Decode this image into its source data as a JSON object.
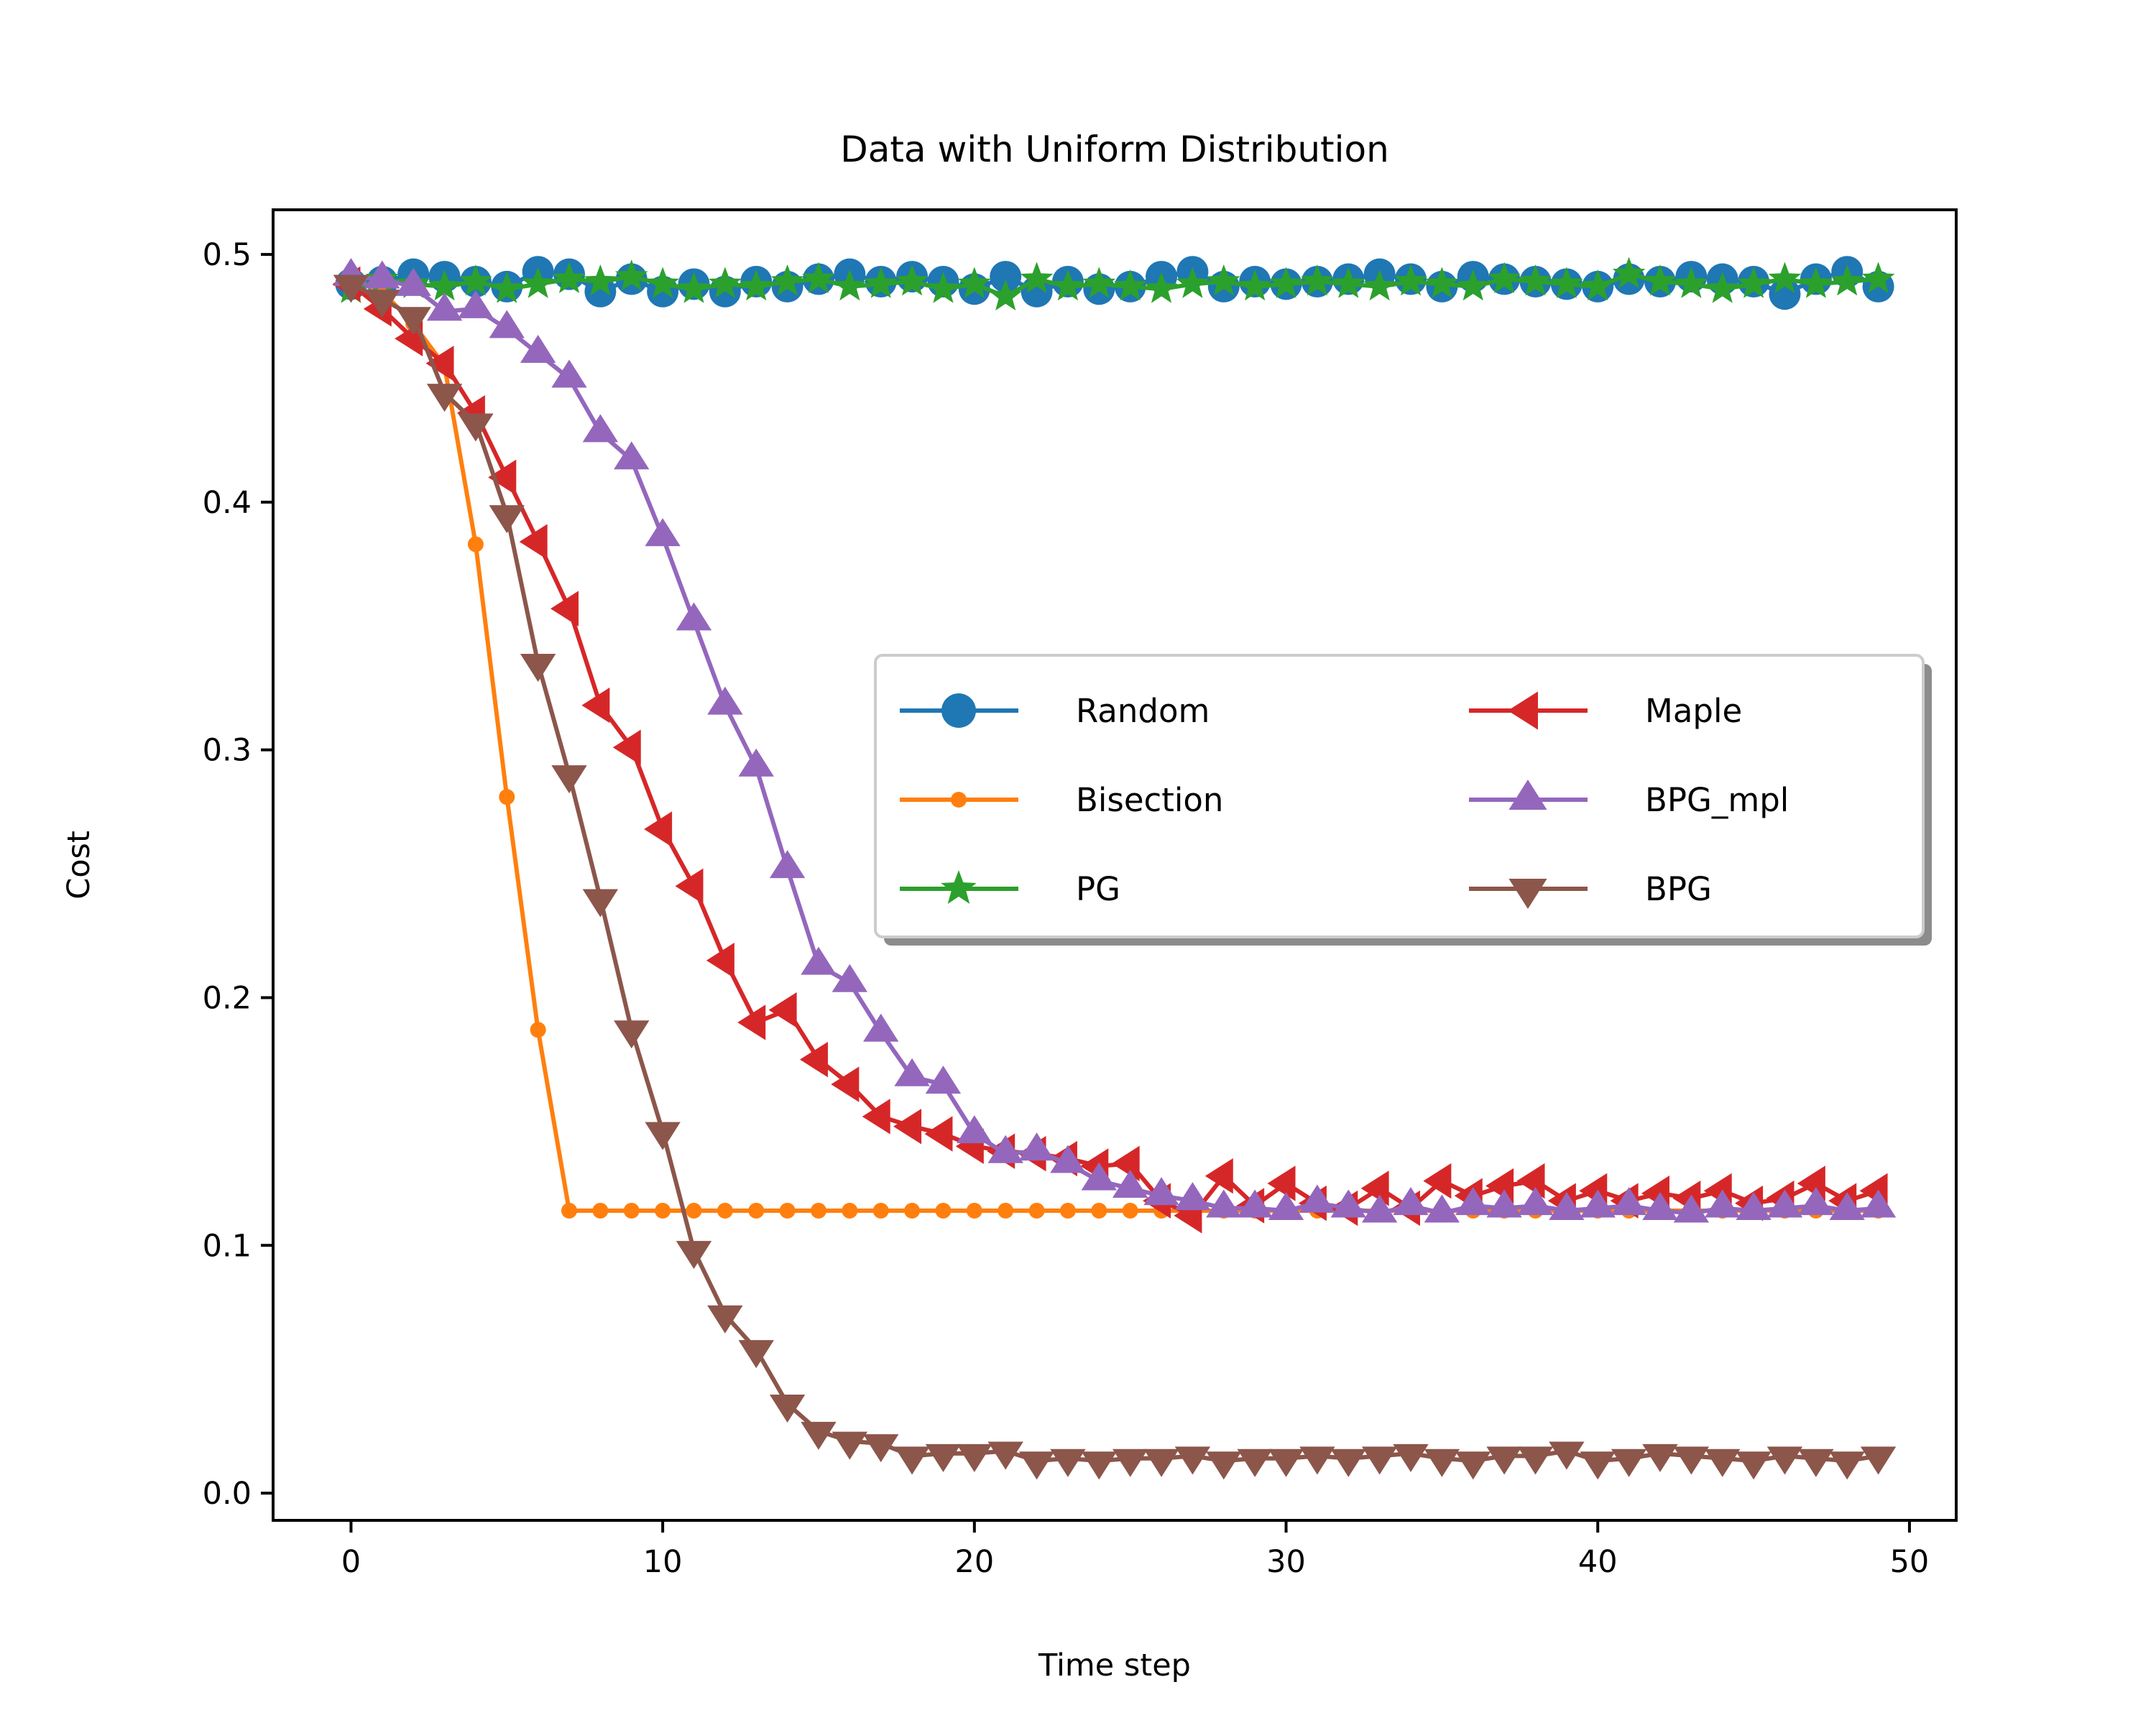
{
  "chart_data": {
    "type": "line",
    "title": "Data with Uniform Distribution",
    "xlabel": "Time step",
    "ylabel": "Cost",
    "xlim": [
      -2.5,
      51.5
    ],
    "ylim": [
      -0.011,
      0.518
    ],
    "xticks": [
      0,
      10,
      20,
      30,
      40,
      50
    ],
    "xtick_labels": [
      "0",
      "10",
      "20",
      "30",
      "40",
      "50"
    ],
    "yticks": [
      0.0,
      0.1,
      0.2,
      0.3,
      0.4,
      0.5
    ],
    "ytick_labels": [
      "0.0",
      "0.1",
      "0.2",
      "0.3",
      "0.4",
      "0.5"
    ],
    "grid": false,
    "legend": {
      "placement": "center-right",
      "columns": 2,
      "shadow": true
    },
    "series": [
      {
        "name": "Random",
        "color": "#1f77b4",
        "marker": "circle",
        "x": [
          0,
          1,
          2,
          3,
          4,
          5,
          6,
          7,
          8,
          9,
          10,
          11,
          12,
          13,
          14,
          15,
          16,
          17,
          18,
          19,
          20,
          21,
          22,
          23,
          24,
          25,
          26,
          27,
          28,
          29,
          30,
          31,
          32,
          33,
          34,
          35,
          36,
          37,
          38,
          39,
          40,
          41,
          42,
          43,
          44,
          45,
          46,
          47,
          48,
          49
        ],
        "values": [
          0.488,
          0.489,
          0.492,
          0.491,
          0.489,
          0.487,
          0.493,
          0.492,
          0.485,
          0.49,
          0.485,
          0.488,
          0.485,
          0.489,
          0.487,
          0.49,
          0.492,
          0.489,
          0.491,
          0.489,
          0.486,
          0.491,
          0.485,
          0.489,
          0.486,
          0.487,
          0.491,
          0.493,
          0.487,
          0.489,
          0.488,
          0.489,
          0.49,
          0.492,
          0.49,
          0.487,
          0.491,
          0.49,
          0.489,
          0.488,
          0.487,
          0.49,
          0.489,
          0.491,
          0.49,
          0.489,
          0.484,
          0.49,
          0.493,
          0.487
        ]
      },
      {
        "name": "Bisection",
        "color": "#ff7f0e",
        "marker": "point",
        "x": [
          0,
          1,
          2,
          3,
          4,
          5,
          6,
          7,
          8,
          9,
          10,
          11,
          12,
          13,
          14,
          15,
          16,
          17,
          18,
          19,
          20,
          21,
          22,
          23,
          24,
          25,
          26,
          27,
          28,
          29,
          30,
          31,
          32,
          33,
          34,
          35,
          36,
          37,
          38,
          39,
          40,
          41,
          42,
          43,
          44,
          45,
          46,
          47,
          48,
          49
        ],
        "values": [
          0.49,
          0.485,
          0.472,
          0.455,
          0.383,
          0.281,
          0.187,
          0.114,
          0.114,
          0.114,
          0.114,
          0.114,
          0.114,
          0.114,
          0.114,
          0.114,
          0.114,
          0.114,
          0.114,
          0.114,
          0.114,
          0.114,
          0.114,
          0.114,
          0.114,
          0.114,
          0.114,
          0.114,
          0.114,
          0.114,
          0.114,
          0.114,
          0.114,
          0.114,
          0.114,
          0.114,
          0.114,
          0.114,
          0.114,
          0.114,
          0.114,
          0.114,
          0.114,
          0.114,
          0.114,
          0.114,
          0.114,
          0.114,
          0.114,
          0.114
        ]
      },
      {
        "name": "PG",
        "color": "#2ca02c",
        "marker": "star",
        "x": [
          0,
          1,
          2,
          3,
          4,
          5,
          6,
          7,
          8,
          9,
          10,
          11,
          12,
          13,
          14,
          15,
          16,
          17,
          18,
          19,
          20,
          21,
          22,
          23,
          24,
          25,
          26,
          27,
          28,
          29,
          30,
          31,
          32,
          33,
          34,
          35,
          36,
          37,
          38,
          39,
          40,
          41,
          42,
          43,
          44,
          45,
          46,
          47,
          48,
          49
        ],
        "values": [
          0.486,
          0.49,
          0.488,
          0.487,
          0.489,
          0.486,
          0.488,
          0.49,
          0.489,
          0.491,
          0.488,
          0.486,
          0.488,
          0.487,
          0.489,
          0.49,
          0.487,
          0.488,
          0.489,
          0.486,
          0.488,
          0.483,
          0.49,
          0.487,
          0.488,
          0.487,
          0.486,
          0.488,
          0.489,
          0.487,
          0.488,
          0.489,
          0.488,
          0.487,
          0.489,
          0.488,
          0.487,
          0.49,
          0.489,
          0.488,
          0.487,
          0.492,
          0.489,
          0.488,
          0.486,
          0.488,
          0.49,
          0.488,
          0.489,
          0.49
        ]
      },
      {
        "name": "Maple",
        "color": "#d62728",
        "marker": "triangle-left",
        "x": [
          0,
          1,
          2,
          3,
          4,
          5,
          6,
          7,
          8,
          9,
          10,
          11,
          12,
          13,
          14,
          15,
          16,
          17,
          18,
          19,
          20,
          21,
          22,
          23,
          24,
          25,
          26,
          27,
          28,
          29,
          30,
          31,
          32,
          33,
          34,
          35,
          36,
          37,
          38,
          39,
          40,
          41,
          42,
          43,
          44,
          45,
          46,
          47,
          48,
          49
        ],
        "values": [
          0.488,
          0.478,
          0.466,
          0.456,
          0.436,
          0.41,
          0.384,
          0.357,
          0.318,
          0.301,
          0.268,
          0.245,
          0.215,
          0.19,
          0.195,
          0.175,
          0.165,
          0.152,
          0.148,
          0.145,
          0.14,
          0.138,
          0.137,
          0.135,
          0.132,
          0.133,
          0.118,
          0.112,
          0.128,
          0.116,
          0.125,
          0.117,
          0.115,
          0.123,
          0.115,
          0.126,
          0.12,
          0.124,
          0.126,
          0.118,
          0.122,
          0.118,
          0.121,
          0.119,
          0.122,
          0.117,
          0.119,
          0.125,
          0.118,
          0.122
        ]
      },
      {
        "name": "BPG_mpl",
        "color": "#9467bd",
        "marker": "triangle-up",
        "x": [
          0,
          1,
          2,
          3,
          4,
          5,
          6,
          7,
          8,
          9,
          10,
          11,
          12,
          13,
          14,
          15,
          16,
          17,
          18,
          19,
          20,
          21,
          22,
          23,
          24,
          25,
          26,
          27,
          28,
          29,
          30,
          31,
          32,
          33,
          34,
          35,
          36,
          37,
          38,
          39,
          40,
          41,
          42,
          43,
          44,
          45,
          46,
          47,
          48,
          49
        ],
        "values": [
          0.491,
          0.49,
          0.487,
          0.477,
          0.478,
          0.47,
          0.46,
          0.45,
          0.428,
          0.417,
          0.386,
          0.352,
          0.318,
          0.293,
          0.252,
          0.213,
          0.206,
          0.186,
          0.168,
          0.165,
          0.145,
          0.137,
          0.138,
          0.133,
          0.126,
          0.123,
          0.12,
          0.118,
          0.115,
          0.115,
          0.114,
          0.117,
          0.115,
          0.113,
          0.116,
          0.113,
          0.116,
          0.115,
          0.116,
          0.114,
          0.115,
          0.116,
          0.114,
          0.113,
          0.115,
          0.114,
          0.115,
          0.116,
          0.114,
          0.115
        ]
      },
      {
        "name": "BPG",
        "color": "#8c564b",
        "marker": "triangle-down",
        "x": [
          0,
          1,
          2,
          3,
          4,
          5,
          6,
          7,
          8,
          9,
          10,
          11,
          12,
          13,
          14,
          15,
          16,
          17,
          18,
          19,
          20,
          21,
          22,
          23,
          24,
          25,
          26,
          27,
          28,
          29,
          30,
          31,
          32,
          33,
          34,
          35,
          36,
          37,
          38,
          39,
          40,
          41,
          42,
          43,
          44,
          45,
          46,
          47,
          48,
          49
        ],
        "values": [
          0.488,
          0.482,
          0.475,
          0.444,
          0.432,
          0.395,
          0.335,
          0.29,
          0.24,
          0.187,
          0.146,
          0.098,
          0.072,
          0.058,
          0.036,
          0.025,
          0.021,
          0.02,
          0.015,
          0.016,
          0.016,
          0.017,
          0.013,
          0.014,
          0.013,
          0.014,
          0.014,
          0.015,
          0.013,
          0.014,
          0.014,
          0.015,
          0.014,
          0.015,
          0.016,
          0.014,
          0.013,
          0.015,
          0.015,
          0.017,
          0.013,
          0.014,
          0.016,
          0.015,
          0.014,
          0.013,
          0.015,
          0.014,
          0.013,
          0.015
        ]
      }
    ]
  }
}
